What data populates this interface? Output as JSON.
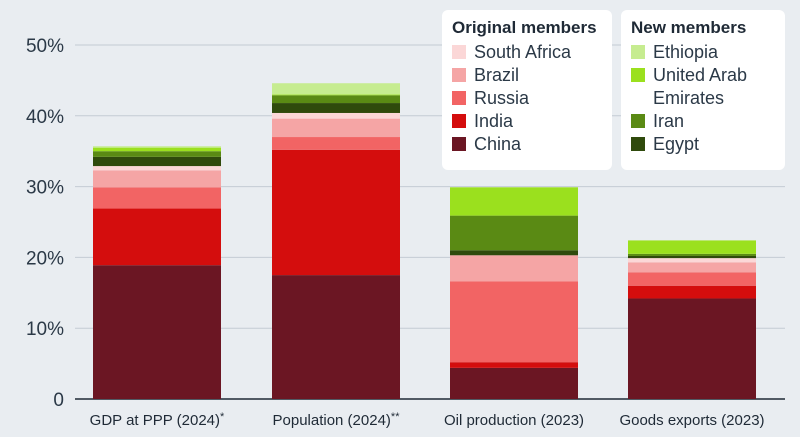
{
  "chart_data": {
    "type": "bar",
    "stacked": true,
    "categories": [
      "GDP at PPP (2024)",
      "Population (2024)",
      "Oil production (2023)",
      "Goods exports (2023)"
    ],
    "category_marks": [
      "*",
      "**",
      "",
      ""
    ],
    "yticks": [
      "0",
      "10%",
      "20%",
      "30%",
      "40%",
      "50%"
    ],
    "ylim": [
      0,
      50
    ],
    "grid": true,
    "series": [
      {
        "name": "China",
        "group": "original",
        "color": "#6b1623",
        "values": [
          18.9,
          17.5,
          4.4,
          14.2
        ]
      },
      {
        "name": "India",
        "group": "original",
        "color": "#d40d0d",
        "values": [
          8.0,
          17.7,
          0.8,
          1.8
        ]
      },
      {
        "name": "Russia",
        "group": "original",
        "color": "#f26464",
        "values": [
          3.0,
          1.8,
          11.4,
          1.9
        ]
      },
      {
        "name": "Brazil",
        "group": "original",
        "color": "#f5a5a5",
        "values": [
          2.4,
          2.6,
          3.7,
          1.4
        ]
      },
      {
        "name": "South Africa",
        "group": "original",
        "color": "#fbd7d7",
        "values": [
          0.6,
          0.8,
          0.0,
          0.6
        ]
      },
      {
        "name": "Egypt",
        "group": "new",
        "color": "#2f4a0c",
        "values": [
          1.3,
          1.4,
          0.7,
          0.3
        ]
      },
      {
        "name": "Iran",
        "group": "new",
        "color": "#5a8a14",
        "values": [
          0.8,
          1.1,
          4.9,
          0.3
        ]
      },
      {
        "name": "United Arab Emirates",
        "group": "new",
        "color": "#9be01e",
        "values": [
          0.5,
          0.1,
          4.0,
          1.9
        ]
      },
      {
        "name": "Ethiopia",
        "group": "new",
        "color": "#c6ec90",
        "values": [
          0.2,
          1.6,
          0.0,
          0.0
        ]
      }
    ]
  },
  "legend": {
    "original": {
      "title": "Original members",
      "items": [
        {
          "label": "South Africa",
          "color": "#fbd7d7"
        },
        {
          "label": "Brazil",
          "color": "#f5a5a5"
        },
        {
          "label": "Russia",
          "color": "#f26464"
        },
        {
          "label": "India",
          "color": "#d40d0d"
        },
        {
          "label": "China",
          "color": "#6b1623"
        }
      ]
    },
    "new": {
      "title": "New members",
      "items": [
        {
          "label": "Ethiopia",
          "color": "#c6ec90"
        },
        {
          "label": "United Arab\nEmirates",
          "color": "#9be01e"
        },
        {
          "label": "Iran",
          "color": "#5a8a14"
        },
        {
          "label": "Egypt",
          "color": "#2f4a0c"
        }
      ]
    }
  }
}
